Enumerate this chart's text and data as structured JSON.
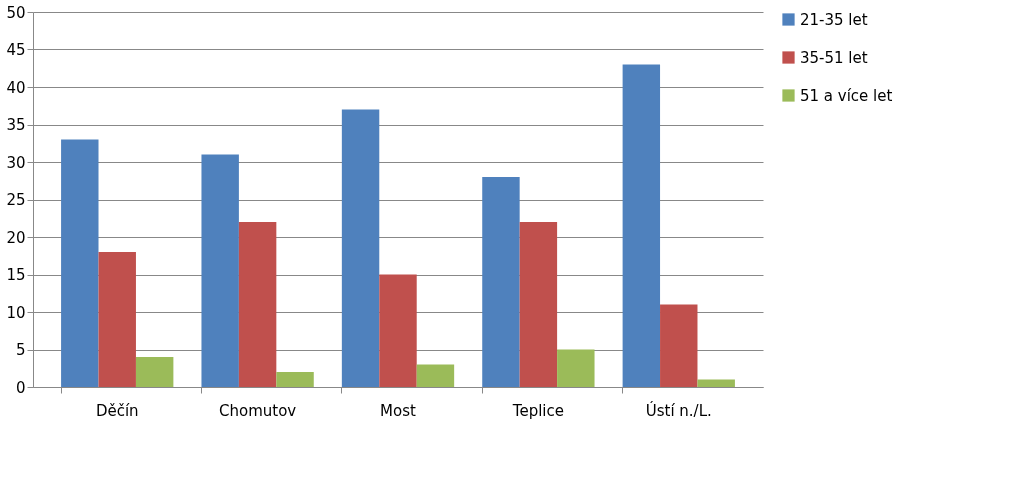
{
  "chart_data": {
    "type": "bar",
    "categories": [
      "Děčín",
      "Chomutov",
      "Most",
      "Teplice",
      "Ústí n./L."
    ],
    "series": [
      {
        "name": "21-35 let",
        "color": "#4f81bd",
        "values": [
          33,
          31,
          37,
          28,
          43
        ]
      },
      {
        "name": "35-51 let",
        "color": "#c0504d",
        "values": [
          18,
          22,
          15,
          22,
          11
        ]
      },
      {
        "name": "51 a více let",
        "color": "#9bbb59",
        "values": [
          4,
          2,
          3,
          5,
          1
        ]
      }
    ],
    "ylim": [
      0,
      50
    ],
    "yticks": [
      0,
      5,
      10,
      15,
      20,
      25,
      30,
      35,
      40,
      45,
      50
    ],
    "grid": "y",
    "legend": "right"
  }
}
